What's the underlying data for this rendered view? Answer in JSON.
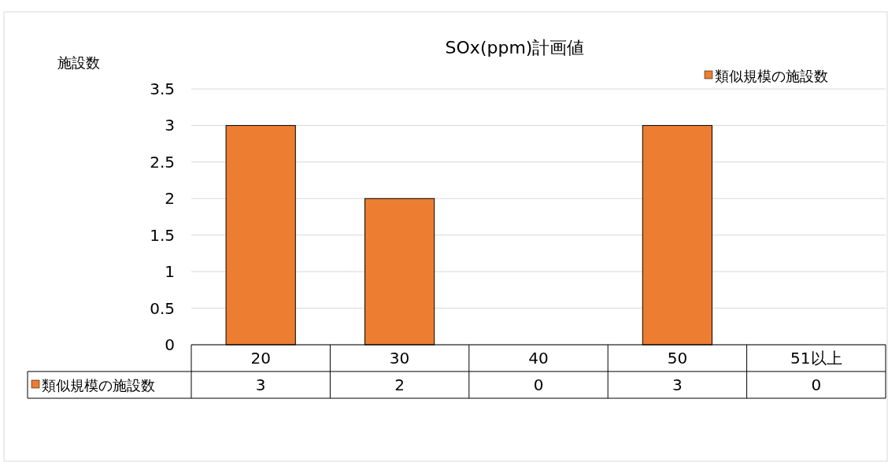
{
  "chart_data": {
    "type": "bar",
    "title": "SOx(ppm)計画値",
    "ylabel": "施設数",
    "categories": [
      "20",
      "30",
      "40",
      "50",
      "51以上"
    ],
    "series": [
      {
        "name": "類似規模の施設数",
        "color": "#ed7d31",
        "values": [
          3,
          2,
          0,
          3,
          0
        ]
      }
    ],
    "ylim": [
      0,
      3.5
    ],
    "yticks": [
      0,
      0.5,
      1,
      1.5,
      2,
      2.5,
      3,
      3.5
    ],
    "grid": "y",
    "legend": "top right",
    "data_labels": true
  }
}
